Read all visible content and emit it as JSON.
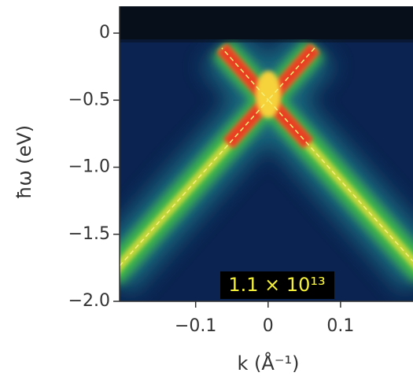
{
  "chart_data": {
    "type": "image",
    "ylabel": "ħω (eV)",
    "xlabel": "k (Å⁻¹)",
    "annotation": "1.1 × 10¹³",
    "xlim": [
      -0.205,
      0.2
    ],
    "ylim": [
      -2.0,
      0.2
    ],
    "xticks": [
      {
        "value": -0.1,
        "label": "−0.1"
      },
      0,
      0.1
    ],
    "yticks": [
      0,
      {
        "value": -0.5,
        "label": "−0.5"
      },
      {
        "value": -1.0,
        "label": "−1.0"
      },
      {
        "value": -1.5,
        "label": "−1.5"
      },
      {
        "value": -2.0,
        "label": "−2.0"
      }
    ]
  }
}
